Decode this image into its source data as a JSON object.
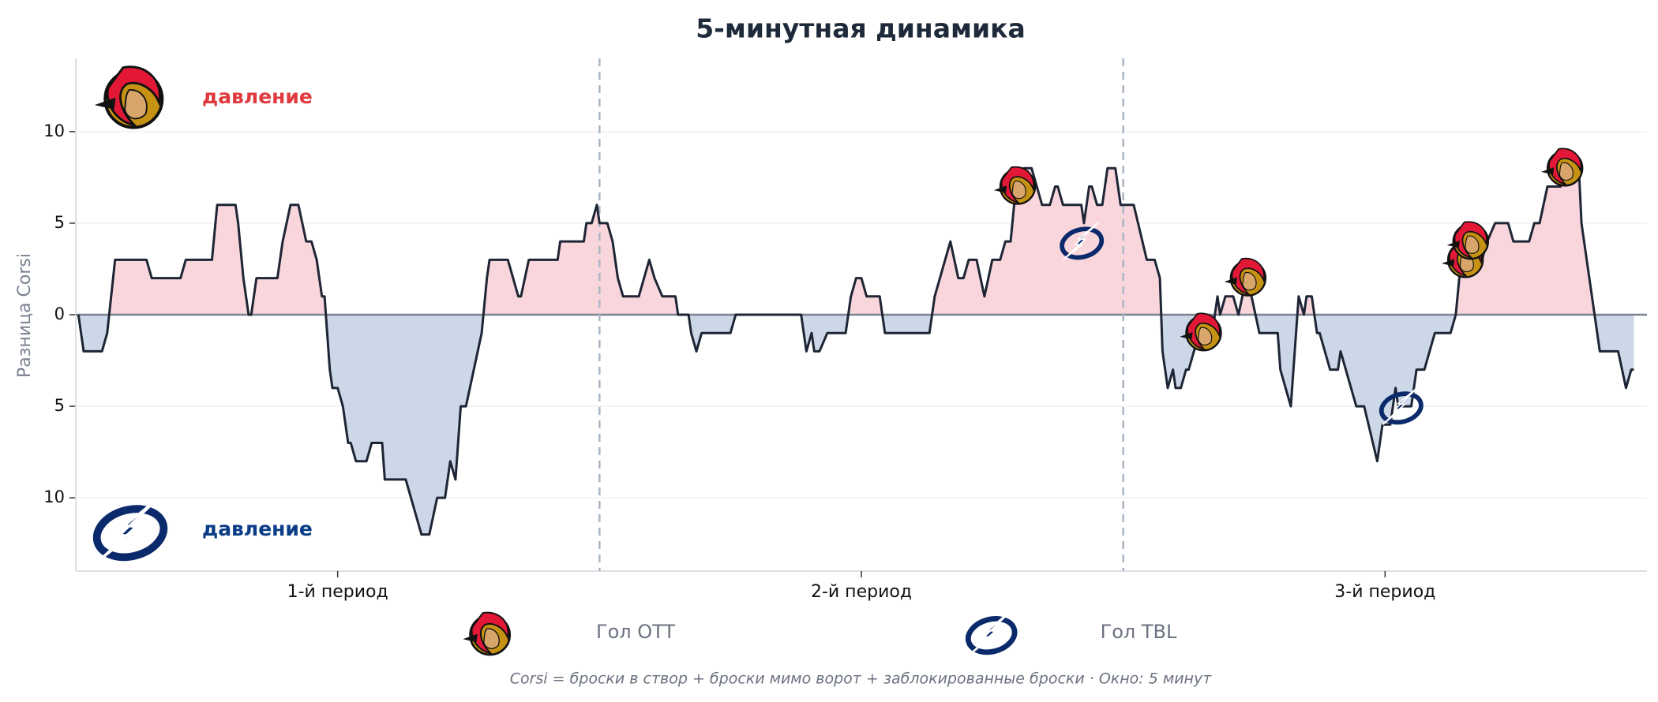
{
  "chart_data": {
    "type": "area",
    "title": "5-минутная динамика",
    "ylabel": "Разница Corsi",
    "footnote": "Corsi = броски в створ + броски мимо ворот + заблокированные броски · Окно: 5 минут",
    "annotations": [
      {
        "text": "давление",
        "color": "#e03a3e"
      },
      {
        "text": "давление",
        "color": "#0b3d86"
      }
    ],
    "x": [
      0.1,
      0.3,
      1.0,
      1.2,
      1.5,
      2.7,
      2.9,
      4.0,
      4.2,
      5.2,
      5.4,
      6.1,
      6.2,
      6.4,
      6.6,
      6.7,
      6.9,
      7.7,
      7.9,
      8.2,
      8.5,
      8.8,
      9.0,
      9.2,
      9.4,
      9.5,
      9.7,
      9.8,
      10.0,
      10.2,
      10.4,
      10.5,
      10.7,
      11.1,
      11.3,
      11.7,
      11.8,
      12.6,
      13.0,
      13.2,
      13.5,
      13.8,
      14.1,
      14.3,
      14.5,
      14.7,
      14.9,
      15.5,
      15.7,
      15.8,
      16.5,
      16.9,
      17.0,
      17.3,
      18.4,
      18.5,
      19.4,
      19.5,
      19.7,
      19.9,
      20.0,
      20.3,
      20.5,
      20.7,
      20.9,
      21.5,
      21.9,
      22.1,
      22.4,
      22.9,
      23.0,
      23.4,
      23.5,
      23.7,
      23.9,
      25.0,
      25.2,
      27.7,
      27.9,
      28.1,
      28.2,
      28.4,
      28.7,
      29.4,
      29.6,
      29.8,
      30.0,
      30.2,
      30.7,
      30.9,
      32.6,
      32.8,
      33.0,
      33.4,
      33.7,
      33.9,
      34.1,
      34.4,
      34.7,
      35.0,
      35.3,
      35.5,
      35.7,
      35.9,
      36.2,
      36.5,
      36.7,
      36.9,
      37.2,
      37.4,
      37.5,
      37.7,
      38.4,
      38.5,
      38.7,
      38.8,
      39.0,
      39.2,
      39.4,
      39.7,
      39.9,
      40.4,
      40.9,
      41.2,
      41.4,
      41.5,
      41.7,
      41.9,
      42.0,
      42.2,
      42.4,
      42.5,
      42.7,
      42.9,
      43.4,
      43.6,
      43.7,
      43.9,
      44.2,
      44.4,
      44.7,
      44.9,
      45.2,
      45.9,
      46.0,
      46.4,
      46.6,
      46.7,
      46.9,
      47.0,
      47.2,
      47.4,
      47.5,
      47.9,
      48.2,
      48.3,
      48.9,
      49.2,
      49.7,
      49.9,
      50.2,
      50.4,
      50.5,
      51.0,
      51.2,
      51.5,
      51.9,
      52.5,
      52.7,
      52.9,
      53.0,
      53.2,
      53.7,
      53.9,
      54.2,
      54.7,
      54.9,
      55.5,
      55.7,
      55.9,
      56.2,
      56.7,
      56.9,
      57.4,
      57.5,
      57.9,
      58.0,
      58.2,
      58.9,
      59.2,
      59.4,
      59.5
    ],
    "values": [
      0,
      -2,
      -2,
      -1,
      3,
      3,
      2,
      2,
      3,
      3,
      6,
      6,
      5,
      2,
      0,
      0,
      2,
      2,
      4,
      6,
      6,
      4,
      4,
      3,
      1,
      1,
      -3,
      -4,
      -4,
      -5,
      -7,
      -7,
      -8,
      -8,
      -7,
      -7,
      -9,
      -9,
      -11,
      -12,
      -12,
      -10,
      -10,
      -8,
      -9,
      -5,
      -5,
      -1,
      2,
      3,
      3,
      1,
      1,
      3,
      3,
      4,
      4,
      5,
      5,
      6,
      5,
      5,
      4,
      2,
      1,
      1,
      3,
      2,
      1,
      1,
      0,
      0,
      -1,
      -2,
      -1,
      -1,
      0,
      0,
      -2,
      -1,
      -2,
      -2,
      -1,
      -1,
      1,
      2,
      2,
      1,
      1,
      -1,
      -1,
      1,
      2,
      4,
      2,
      2,
      3,
      3,
      1,
      3,
      3,
      4,
      4,
      7,
      8,
      8,
      7,
      6,
      6,
      7,
      7,
      6,
      6,
      5,
      7,
      7,
      6,
      6,
      8,
      8,
      6,
      6,
      3,
      3,
      2,
      -2,
      -4,
      -3,
      -4,
      -4,
      -3,
      -3,
      -2,
      -1,
      -1,
      1,
      0,
      1,
      1,
      0,
      2,
      1,
      -1,
      -1,
      -3,
      -5,
      -1,
      1,
      0,
      1,
      1,
      -1,
      -1,
      -3,
      -3,
      -2,
      -5,
      -5,
      -8,
      -6,
      -6,
      -4,
      -5,
      -5,
      -3,
      -3,
      -1,
      -1,
      0,
      3,
      3,
      4,
      3,
      4,
      5,
      5,
      4,
      4,
      5,
      5,
      7,
      7,
      8,
      8,
      5,
      1,
      0,
      -2,
      -2,
      -4,
      -3,
      -3
    ],
    "line_color": "#1e2535",
    "positive_color": "#f9d6dc",
    "negative_color": "#ccd8e8",
    "xlim": [
      0,
      60
    ],
    "xticks": [
      {
        "value": 10,
        "label": "1-й период"
      },
      {
        "value": 30,
        "label": "2-й период"
      },
      {
        "value": 50,
        "label": "3-й период"
      }
    ],
    "period_lines": [
      20,
      40
    ],
    "ylim": [
      -14,
      14
    ],
    "yticks": [
      {
        "value": -10,
        "label": "10"
      },
      {
        "value": -5,
        "label": "5"
      },
      0,
      5,
      10
    ],
    "grid": true,
    "goals": [
      {
        "name": "Гол OTT",
        "icon": "ott",
        "x": [
          35.9,
          43.0,
          44.7,
          53.0,
          53.2,
          56.8
        ],
        "y": [
          7,
          -1,
          2,
          3,
          4,
          8
        ]
      },
      {
        "name": "Гол TBL",
        "icon": "tbl",
        "x": [
          38.4,
          50.6
        ],
        "y": [
          4,
          -5
        ]
      }
    ]
  }
}
